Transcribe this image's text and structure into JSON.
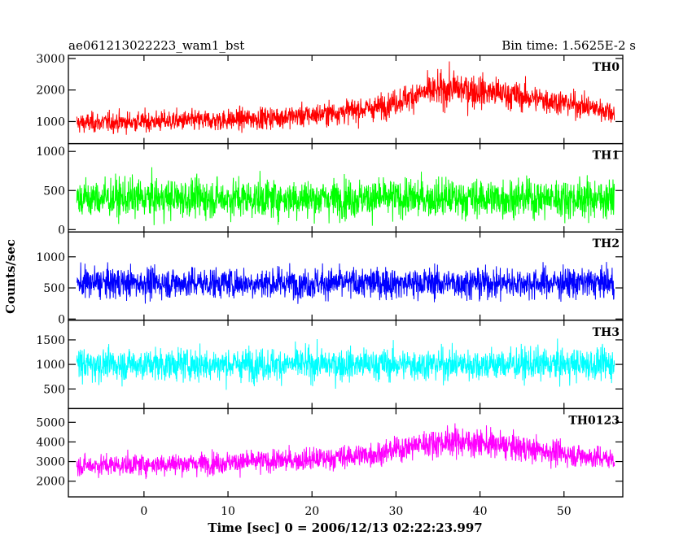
{
  "chart_data": {
    "type": "line",
    "title_left": "ae061213022223_wam1_bst",
    "title_right": "Bin time: 1.5625E-2 s",
    "xlabel": "Time [sec] 0 = 2006/12/13 02:22:23.997",
    "ylabel": "Counts/sec",
    "xlim": [
      -9,
      57
    ],
    "x_ticks": [
      0,
      10,
      20,
      30,
      40,
      50
    ],
    "x_data_range": [
      -8,
      56
    ],
    "series": [
      {
        "name": "TH0",
        "color": "#ff0000",
        "ylim": [
          300,
          3100
        ],
        "y_ticks": [
          1000,
          2000,
          3000
        ],
        "baseline": [
          [
            -8,
            950
          ],
          [
            0,
            1000
          ],
          [
            10,
            1050
          ],
          [
            20,
            1200
          ],
          [
            28,
            1450
          ],
          [
            33,
            1900
          ],
          [
            37,
            2050
          ],
          [
            42,
            1900
          ],
          [
            50,
            1600
          ],
          [
            56,
            1300
          ]
        ],
        "spread": [
          [
            -8,
            350
          ],
          [
            20,
            400
          ],
          [
            30,
            450
          ],
          [
            37,
            650
          ],
          [
            45,
            500
          ],
          [
            56,
            400
          ]
        ]
      },
      {
        "name": "TH1",
        "color": "#00ff00",
        "ylim": [
          -30,
          1100
        ],
        "y_ticks": [
          0,
          500,
          1000
        ],
        "baseline": [
          [
            -8,
            400
          ],
          [
            56,
            400
          ]
        ],
        "spread": [
          [
            -8,
            280
          ],
          [
            56,
            280
          ]
        ]
      },
      {
        "name": "TH2",
        "color": "#0000ff",
        "ylim": [
          -20,
          1400
        ],
        "y_ticks": [
          0,
          500,
          1000
        ],
        "baseline": [
          [
            -8,
            580
          ],
          [
            56,
            580
          ]
        ],
        "spread": [
          [
            -8,
            280
          ],
          [
            56,
            280
          ]
        ]
      },
      {
        "name": "TH3",
        "color": "#00ffff",
        "ylim": [
          100,
          1900
        ],
        "y_ticks": [
          500,
          1000,
          1500
        ],
        "baseline": [
          [
            -8,
            1000
          ],
          [
            56,
            1000
          ]
        ],
        "spread": [
          [
            -8,
            370
          ],
          [
            56,
            370
          ]
        ]
      },
      {
        "name": "TH0123",
        "color": "#ff00ff",
        "ylim": [
          1200,
          5700
        ],
        "y_ticks": [
          2000,
          3000,
          4000,
          5000
        ],
        "baseline": [
          [
            -8,
            2800
          ],
          [
            0,
            2850
          ],
          [
            10,
            2950
          ],
          [
            20,
            3100
          ],
          [
            28,
            3400
          ],
          [
            33,
            3900
          ],
          [
            37,
            4050
          ],
          [
            42,
            3850
          ],
          [
            50,
            3400
          ],
          [
            56,
            3100
          ]
        ],
        "spread": [
          [
            -8,
            600
          ],
          [
            20,
            650
          ],
          [
            30,
            700
          ],
          [
            37,
            850
          ],
          [
            45,
            750
          ],
          [
            56,
            650
          ]
        ]
      }
    ]
  }
}
